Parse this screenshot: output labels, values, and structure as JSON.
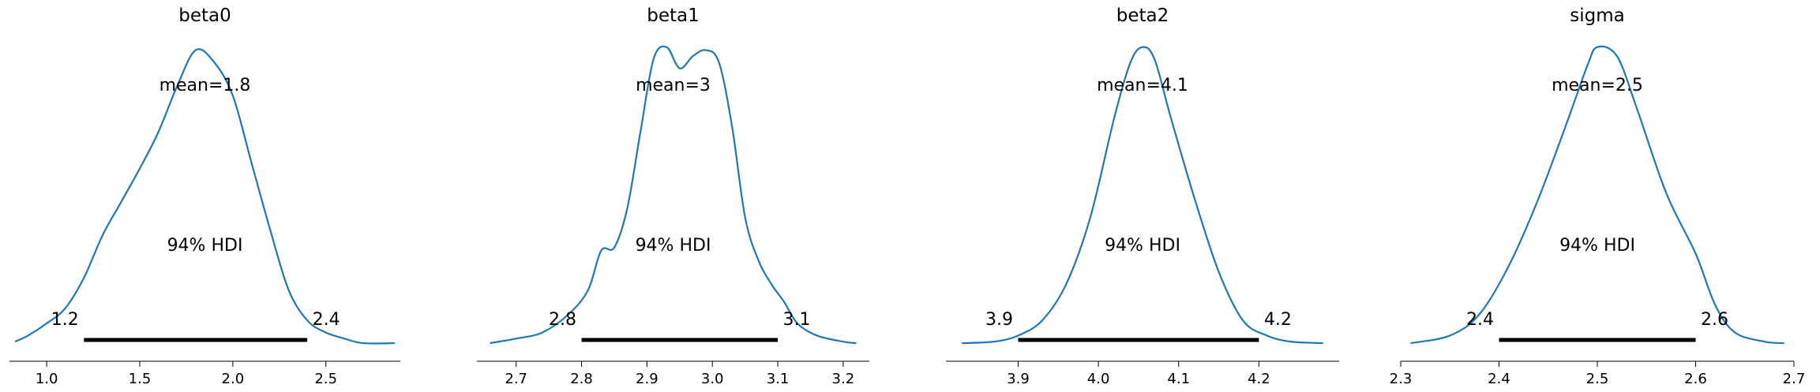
{
  "chart_data": [
    {
      "type": "line",
      "title": "beta0",
      "mean_label": "mean=1.8",
      "hdi_label": "94% HDI",
      "hdi": [
        1.2,
        2.4
      ],
      "hdi_bounds": [
        "1.2",
        "2.4"
      ],
      "xlim": [
        0.8,
        2.9
      ],
      "xticks": [
        1.0,
        1.5,
        2.0,
        2.5
      ],
      "xtick_labels": [
        "1.0",
        "1.5",
        "2.0",
        "2.5"
      ],
      "density": {
        "x": [
          0.83,
          0.9,
          1.0,
          1.1,
          1.2,
          1.3,
          1.4,
          1.5,
          1.6,
          1.7,
          1.8,
          1.9,
          2.0,
          2.1,
          2.2,
          2.3,
          2.4,
          2.5,
          2.6,
          2.7,
          2.87
        ],
        "y": [
          0.01,
          0.03,
          0.07,
          0.12,
          0.22,
          0.36,
          0.47,
          0.58,
          0.7,
          0.85,
          0.97,
          0.93,
          0.82,
          0.6,
          0.38,
          0.18,
          0.08,
          0.04,
          0.02,
          0.005,
          0.005
        ]
      }
    },
    {
      "type": "line",
      "title": "beta1",
      "mean_label": "mean=3",
      "hdi_label": "94% HDI",
      "hdi": [
        2.8,
        3.1
      ],
      "hdi_bounds": [
        "2.8",
        "3.1"
      ],
      "xlim": [
        2.64,
        3.24
      ],
      "xticks": [
        2.7,
        2.8,
        2.9,
        3.0,
        3.1,
        3.2
      ],
      "xtick_labels": [
        "2.7",
        "2.8",
        "2.9",
        "3.0",
        "3.1",
        "3.2"
      ],
      "density": {
        "x": [
          2.66,
          2.7,
          2.74,
          2.78,
          2.81,
          2.83,
          2.85,
          2.87,
          2.89,
          2.91,
          2.93,
          2.95,
          2.97,
          2.99,
          3.01,
          3.03,
          3.05,
          3.07,
          3.09,
          3.11,
          3.13,
          3.16,
          3.2,
          3.22
        ],
        "y": [
          0.005,
          0.02,
          0.04,
          0.1,
          0.18,
          0.31,
          0.32,
          0.45,
          0.7,
          0.94,
          0.98,
          0.91,
          0.95,
          0.97,
          0.93,
          0.72,
          0.42,
          0.28,
          0.2,
          0.14,
          0.07,
          0.03,
          0.01,
          0.005
        ]
      }
    },
    {
      "type": "line",
      "title": "beta2",
      "mean_label": "mean=4.1",
      "hdi_label": "94% HDI",
      "hdi": [
        3.9,
        4.2
      ],
      "hdi_bounds": [
        "3.9",
        "4.2"
      ],
      "xlim": [
        3.81,
        4.3
      ],
      "xticks": [
        3.9,
        4.0,
        4.1,
        4.2
      ],
      "xtick_labels": [
        "3.9",
        "4.0",
        "4.1",
        "4.2"
      ],
      "density": {
        "x": [
          3.83,
          3.87,
          3.9,
          3.93,
          3.96,
          3.99,
          4.02,
          4.04,
          4.055,
          4.07,
          4.09,
          4.12,
          4.15,
          4.18,
          4.21,
          4.24,
          4.28
        ],
        "y": [
          0.005,
          0.01,
          0.03,
          0.08,
          0.2,
          0.42,
          0.75,
          0.93,
          0.98,
          0.94,
          0.75,
          0.48,
          0.24,
          0.08,
          0.03,
          0.01,
          0.005
        ]
      }
    },
    {
      "type": "line",
      "title": "sigma",
      "mean_label": "mean=2.5",
      "hdi_label": "94% HDI",
      "hdi": [
        2.4,
        2.6
      ],
      "hdi_bounds": [
        "2.4",
        "2.6"
      ],
      "xlim": [
        2.3,
        2.7
      ],
      "xticks": [
        2.3,
        2.4,
        2.5,
        2.6,
        2.7
      ],
      "xtick_labels": [
        "2.3",
        "2.4",
        "2.5",
        "2.6",
        "2.7"
      ],
      "density": {
        "x": [
          2.31,
          2.35,
          2.38,
          2.41,
          2.44,
          2.47,
          2.49,
          2.5,
          2.52,
          2.54,
          2.57,
          2.6,
          2.62,
          2.64,
          2.67,
          2.69
        ],
        "y": [
          0.005,
          0.03,
          0.1,
          0.26,
          0.48,
          0.74,
          0.92,
          0.98,
          0.95,
          0.78,
          0.5,
          0.3,
          0.13,
          0.04,
          0.01,
          0.005
        ]
      }
    }
  ]
}
